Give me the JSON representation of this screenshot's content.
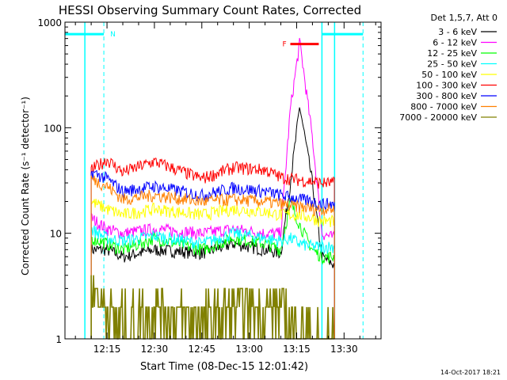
{
  "chart_data": {
    "type": "line",
    "title": "HESSI Observing Summary Count Rates, Corrected",
    "xlabel": "Start Time (08-Dec-15 12:01:42)",
    "ylabel": "Corrected Count Rate (s⁻¹ detector⁻¹)",
    "yscale": "log",
    "ylim": [
      1,
      1000
    ],
    "xlim": [
      "12:01:42",
      "13:41:42"
    ],
    "x_ticks": [
      "12:15",
      "12:30",
      "12:45",
      "13:00",
      "13:15",
      "13:30"
    ],
    "y_ticks": [
      "1",
      "10",
      "100",
      "1000"
    ],
    "legend_title": "Det 1,5,7, Att 0",
    "legend_position": "right",
    "timestamp": "14-Oct-2017 18:21",
    "series": [
      {
        "name": "3 - 6 keV",
        "color": "#000000",
        "x": [
          "12:10",
          "12:15",
          "12:20",
          "12:30",
          "12:45",
          "12:55",
          "13:05",
          "13:10",
          "13:13",
          "13:16",
          "13:20",
          "13:23",
          "13:27"
        ],
        "values": [
          7,
          7,
          6,
          7,
          6.5,
          8,
          7,
          6.5,
          30,
          160,
          30,
          6,
          5
        ]
      },
      {
        "name": "6 - 12 keV",
        "color": "#ff00ff",
        "x": [
          "12:10",
          "12:15",
          "12:20",
          "12:30",
          "12:45",
          "12:55",
          "13:05",
          "13:10",
          "13:13",
          "13:16",
          "13:20",
          "13:23",
          "13:27"
        ],
        "values": [
          14,
          11,
          10,
          11,
          10,
          11,
          10,
          10,
          150,
          650,
          80,
          10,
          9
        ]
      },
      {
        "name": "12 - 25 keV",
        "color": "#00ff00",
        "x": [
          "12:10",
          "12:15",
          "12:20",
          "12:30",
          "12:45",
          "12:55",
          "13:05",
          "13:10",
          "13:13",
          "13:16",
          "13:20",
          "13:23",
          "13:27"
        ],
        "values": [
          9,
          8,
          7,
          9,
          7,
          9,
          8,
          7,
          20,
          12,
          7,
          6,
          6
        ]
      },
      {
        "name": "25 - 50 keV",
        "color": "#00ffff",
        "x": [
          "12:10",
          "12:15",
          "12:20",
          "12:30",
          "12:45",
          "12:55",
          "13:05",
          "13:10",
          "13:13",
          "13:16",
          "13:20",
          "13:23",
          "13:27"
        ],
        "values": [
          11,
          9,
          8.5,
          9.5,
          8,
          10,
          9,
          8.5,
          9,
          8,
          7.5,
          7.5,
          7.5
        ]
      },
      {
        "name": "50 - 100 keV",
        "color": "#ffff00",
        "x": [
          "12:10",
          "12:15",
          "12:20",
          "12:30",
          "12:45",
          "12:55",
          "13:05",
          "13:10",
          "13:13",
          "13:16",
          "13:20",
          "13:23",
          "13:27"
        ],
        "values": [
          20,
          17,
          15,
          17,
          15,
          17,
          16,
          15,
          15,
          15,
          14,
          13,
          13
        ]
      },
      {
        "name": "100 - 300 keV",
        "color": "#ff0000",
        "x": [
          "12:10",
          "12:15",
          "12:20",
          "12:30",
          "12:45",
          "12:55",
          "13:05",
          "13:10",
          "13:13",
          "13:16",
          "13:20",
          "13:23",
          "13:27"
        ],
        "values": [
          40,
          50,
          38,
          48,
          33,
          42,
          40,
          34,
          33,
          32,
          31,
          30,
          30
        ]
      },
      {
        "name": "300 - 800 keV",
        "color": "#0000ff",
        "x": [
          "12:10",
          "12:15",
          "12:20",
          "12:30",
          "12:45",
          "12:55",
          "13:05",
          "13:10",
          "13:13",
          "13:16",
          "13:20",
          "13:23",
          "13:27"
        ],
        "values": [
          38,
          33,
          25,
          28,
          23,
          27,
          25,
          23,
          22,
          21,
          20,
          19,
          19
        ]
      },
      {
        "name": "800 - 7000 keV",
        "color": "#ff8000",
        "x": [
          "12:10",
          "12:15",
          "12:20",
          "12:30",
          "12:45",
          "12:55",
          "13:05",
          "13:10",
          "13:13",
          "13:16",
          "13:20",
          "13:23",
          "13:27"
        ],
        "values": [
          33,
          28,
          21,
          23,
          20,
          21,
          20,
          19,
          18,
          18,
          17,
          17,
          17
        ]
      },
      {
        "name": "7000 - 20000 keV",
        "color": "#808000",
        "x": [
          "12:10",
          "12:15",
          "12:20",
          "12:30",
          "12:45",
          "12:55",
          "13:05",
          "13:10",
          "13:13",
          "13:16",
          "13:20",
          "13:23",
          "13:27"
        ],
        "values": [
          3,
          2,
          1.5,
          2,
          1.5,
          2,
          2,
          2,
          1.5,
          1,
          1,
          1,
          1
        ]
      }
    ],
    "annotations": [
      {
        "text": "N",
        "color": "#00ffff",
        "x_start": "12:01:42",
        "x_end": "12:14",
        "level": 770
      },
      {
        "text": "F",
        "color": "#ff0000",
        "x_start": "13:13",
        "x_end": "13:22",
        "level": 620
      },
      {
        "text": "",
        "color": "#00ffff",
        "x_start": "13:23",
        "x_end": "13:36",
        "level": 770
      }
    ],
    "markers": {
      "cyan_solid": [
        "12:08",
        "13:23",
        "13:27"
      ],
      "cyan_dashed": [
        "12:14",
        "13:36"
      ]
    }
  }
}
